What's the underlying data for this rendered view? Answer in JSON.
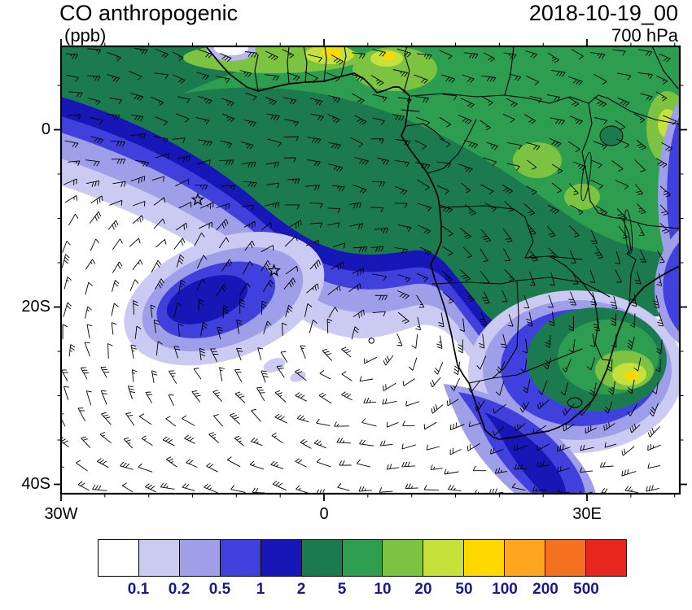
{
  "header": {
    "title": "CO anthropogenic",
    "units_label": "(ppb)",
    "datetime": "2018-10-19_00",
    "level_label": "700 hPa"
  },
  "map_axes": {
    "y_ticks": [
      {
        "label": "0",
        "lat": 0
      },
      {
        "label": "20S",
        "lat": -20
      },
      {
        "label": "40S",
        "lat": -40
      }
    ],
    "x_ticks": [
      {
        "label": "30W",
        "lon": -30
      },
      {
        "label": "0",
        "lon": 0
      },
      {
        "label": "30E",
        "lon": 30
      }
    ]
  },
  "colorbar": {
    "labels": [
      "0.1",
      "0.2",
      "0.5",
      "1",
      "2",
      "5",
      "10",
      "20",
      "50",
      "100",
      "200",
      "500"
    ],
    "colors": [
      "#ffffff",
      "#cacaf2",
      "#9e9ee9",
      "#4040dd",
      "#1717b8",
      "#1b7b4f",
      "#2d9e50",
      "#7cc342",
      "#c6e23a",
      "#ffd800",
      "#ffa51e",
      "#f4711f",
      "#e8251f"
    ],
    "label_color": "#1a1a90"
  },
  "annotations": {
    "star_markers": [
      {
        "lon": -14.4,
        "lat": -7.9
      },
      {
        "lon": -5.7,
        "lat": -15.9
      }
    ],
    "calm_wind_circle": {
      "lon": 5.4,
      "lat": -23.8
    }
  },
  "chart_data": {
    "type": "heatmap",
    "title": "CO anthropogenic",
    "units": "ppb",
    "valid_time": "2018-10-19_00",
    "pressure_level": "700 hPa",
    "projection": "lat-lon",
    "lon_range": [
      -30,
      40.6
    ],
    "lat_range": [
      -41.1,
      9.4
    ],
    "x_tick_labels": [
      "30W",
      "0",
      "30E"
    ],
    "y_tick_labels": [
      "0",
      "20S",
      "40S"
    ],
    "contour_levels": [
      0.1,
      0.2,
      0.5,
      1,
      2,
      5,
      10,
      20,
      50,
      100,
      200,
      500
    ],
    "palette": [
      "#ffffff",
      "#cacaf2",
      "#9e9ee9",
      "#4040dd",
      "#1717b8",
      "#1b7b4f",
      "#2d9e50",
      "#7cc342",
      "#c6e23a",
      "#ffd800",
      "#ffa51e",
      "#f4711f",
      "#e8251f"
    ],
    "legend_position": "bottom",
    "grid": false,
    "overlays": [
      "wind barbs",
      "coastlines",
      "country borders",
      "star markers",
      "calm-wind circle"
    ],
    "depicted_features": [
      "Broad CO plume (2-10 ppb) from equatorial West/Central Africa extending southwest over the Gulf of Guinea and tropical South Atlantic",
      "Enhanced CO (10-100 ppb) over Nigeria/Cameroon area, the Congo Basin and eastern South Africa",
      "Detached CO filament (0.5-2 ppb) over the subtropical South Atlantic near 20S, 10W",
      "Clean air (below 0.1 ppb) over the far South Atlantic with anticyclonic wind-barb circulation",
      "CO tongue (0.5-2 ppb) wrapping around the South African south coast",
      "Narrow CO minimum band along the eastern map edge near the coast"
    ]
  }
}
